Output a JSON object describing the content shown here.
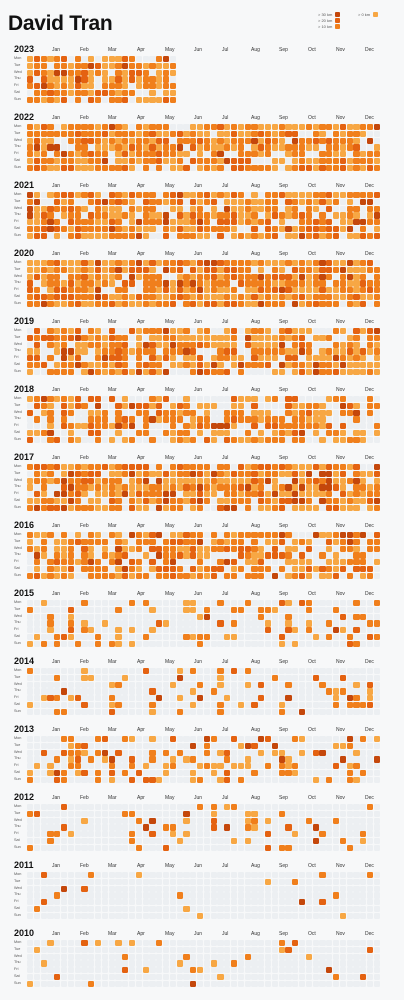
{
  "title": "David Tran",
  "legend": [
    {
      "label": "> 30 km",
      "color": "#c4470b"
    },
    {
      "label": "> 20 km",
      "color": "#e46211"
    },
    {
      "label": "> 10 km",
      "color": "#f07f1c"
    },
    {
      "label": "> 0 km",
      "color": "#f7a744"
    }
  ],
  "colors": {
    "empty": "#eceff2",
    "levels": [
      "#f7a744",
      "#f07f1c",
      "#e46211",
      "#c4470b"
    ]
  },
  "months": [
    "Jan",
    "Feb",
    "Mar",
    "Apr",
    "May",
    "Jun",
    "Jul",
    "Aug",
    "Sep",
    "Oct",
    "Nov",
    "Dec"
  ],
  "days": [
    "Mon",
    "Tue",
    "Wed",
    "Thu",
    "Fri",
    "Sat",
    "Sun"
  ],
  "chart_data": {
    "type": "heatmap",
    "layout": "calendar weekly grid per year (columns = weeks, rows = weekdays Mon–Sun)",
    "value_unit": "km per day, bucketed",
    "buckets": [
      "0",
      "> 0 km",
      "> 10 km",
      "> 20 km",
      "> 30 km"
    ],
    "years": [
      {
        "year": "2023",
        "active_weeks": 22,
        "activity": 0.85
      },
      {
        "year": "2022",
        "active_weeks": 52,
        "activity": 0.88
      },
      {
        "year": "2021",
        "active_weeks": 52,
        "activity": 0.82
      },
      {
        "year": "2020",
        "active_weeks": 52,
        "activity": 0.92
      },
      {
        "year": "2019",
        "active_weeks": 52,
        "activity": 0.85
      },
      {
        "year": "2018",
        "active_weeks": 52,
        "activity": 0.65
      },
      {
        "year": "2017",
        "active_weeks": 52,
        "activity": 0.85
      },
      {
        "year": "2016",
        "active_weeks": 52,
        "activity": 0.72
      },
      {
        "year": "2015",
        "active_weeks": 52,
        "activity": 0.25
      },
      {
        "year": "2014",
        "active_weeks": 52,
        "activity": 0.2
      },
      {
        "year": "2013",
        "active_weeks": 52,
        "activity": 0.38
      },
      {
        "year": "2012",
        "active_weeks": 52,
        "activity": 0.18
      },
      {
        "year": "2011",
        "active_weeks": 52,
        "activity": 0.05
      },
      {
        "year": "2010",
        "active_weeks": 52,
        "activity": 0.08
      }
    ]
  }
}
